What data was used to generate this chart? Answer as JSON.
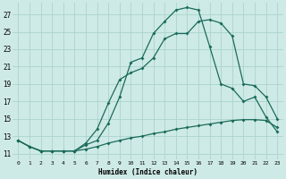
{
  "xlabel": "Humidex (Indice chaleur)",
  "background_color": "#ceeae6",
  "grid_color": "#aad4ce",
  "line_color": "#1a6b5a",
  "x_ticks": [
    0,
    1,
    2,
    3,
    4,
    5,
    6,
    7,
    8,
    9,
    10,
    11,
    12,
    13,
    14,
    15,
    16,
    17,
    18,
    19,
    20,
    21,
    22,
    23
  ],
  "y_ticks": [
    11,
    13,
    15,
    17,
    19,
    21,
    23,
    25,
    27
  ],
  "xlim": [
    -0.5,
    23.5
  ],
  "ylim": [
    10.3,
    28.3
  ],
  "curve1_x": [
    0,
    1,
    2,
    3,
    4,
    5,
    6,
    7,
    8,
    9,
    10,
    11,
    12,
    13,
    14,
    15,
    16,
    17,
    18,
    19,
    20,
    21,
    22,
    23
  ],
  "curve1_y": [
    12.5,
    11.8,
    11.3,
    11.3,
    11.3,
    11.3,
    11.5,
    11.8,
    12.2,
    12.5,
    12.8,
    13.0,
    13.3,
    13.5,
    13.8,
    14.0,
    14.2,
    14.4,
    14.6,
    14.8,
    14.9,
    14.9,
    14.8,
    14.0
  ],
  "curve2_x": [
    0,
    1,
    2,
    3,
    4,
    5,
    6,
    7,
    8,
    9,
    10,
    11,
    12,
    13,
    14,
    15,
    16,
    17,
    18,
    19,
    20,
    21,
    22,
    23
  ],
  "curve2_y": [
    12.5,
    11.8,
    11.3,
    11.3,
    11.3,
    11.3,
    12.0,
    12.5,
    14.5,
    17.5,
    21.5,
    22.0,
    24.8,
    26.2,
    27.5,
    27.8,
    27.5,
    23.3,
    19.0,
    18.5,
    17.0,
    17.5,
    15.2,
    13.5
  ],
  "curve3_x": [
    0,
    1,
    2,
    3,
    4,
    5,
    6,
    7,
    8,
    9,
    10,
    11,
    12,
    13,
    14,
    15,
    16,
    17,
    18,
    19,
    20,
    21,
    22,
    23
  ],
  "curve3_y": [
    12.5,
    11.8,
    11.3,
    11.3,
    11.3,
    11.3,
    12.2,
    13.8,
    16.8,
    19.5,
    20.3,
    20.8,
    22.0,
    24.2,
    24.8,
    24.8,
    26.2,
    26.4,
    26.0,
    24.5,
    19.0,
    18.8,
    17.5,
    15.0
  ]
}
